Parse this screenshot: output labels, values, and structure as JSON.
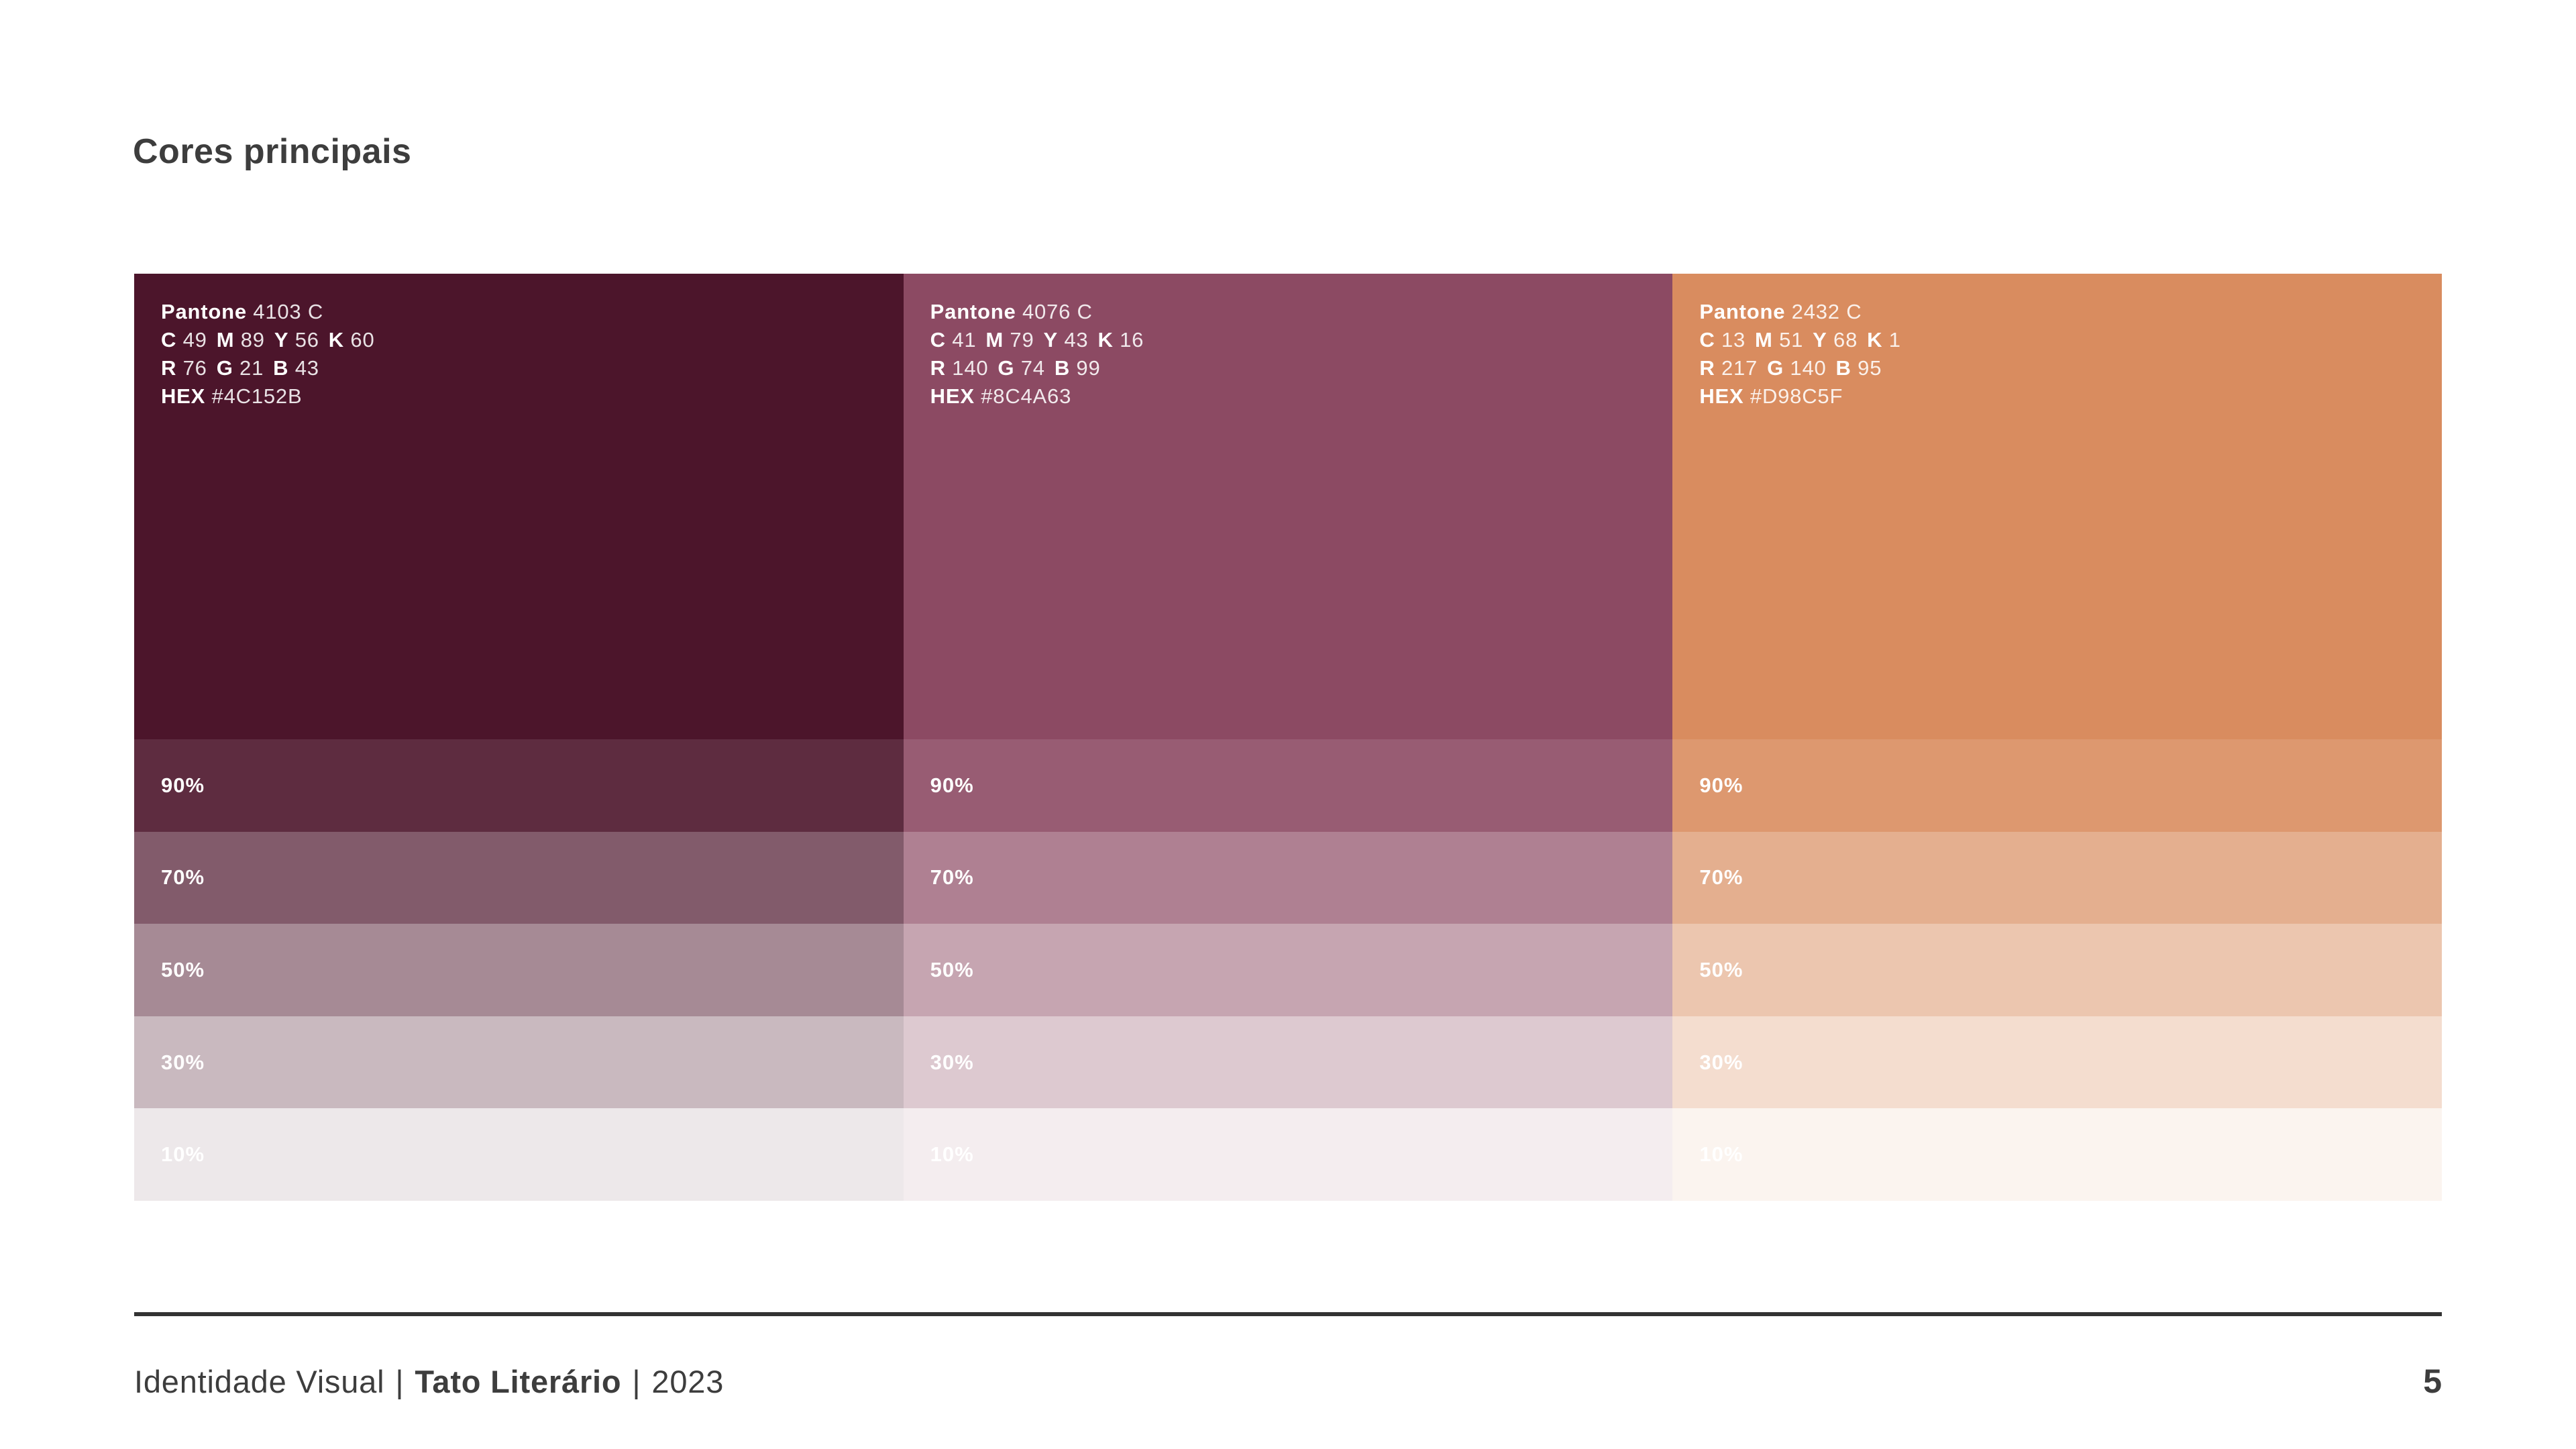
{
  "title": "Cores principais",
  "palette": {
    "label_pantone": "Pantone",
    "label_hex": "HEX",
    "tint_labels": [
      "90%",
      "70%",
      "50%",
      "30%",
      "10%"
    ],
    "tint_percents": [
      90,
      70,
      50,
      30,
      10
    ],
    "colors": [
      {
        "pantone": "4103 C",
        "cmyk": [
          [
            "C",
            "49"
          ],
          [
            "M",
            "89"
          ],
          [
            "Y",
            "56"
          ],
          [
            "K",
            "60"
          ]
        ],
        "rgb": [
          [
            "R",
            "76"
          ],
          [
            "G",
            "21"
          ],
          [
            "B",
            "43"
          ]
        ],
        "hex": "#4C152B"
      },
      {
        "pantone": "4076 C",
        "cmyk": [
          [
            "C",
            "41"
          ],
          [
            "M",
            "79"
          ],
          [
            "Y",
            "43"
          ],
          [
            "K",
            "16"
          ]
        ],
        "rgb": [
          [
            "R",
            "140"
          ],
          [
            "G",
            "74"
          ],
          [
            "B",
            "99"
          ]
        ],
        "hex": "#8C4A63"
      },
      {
        "pantone": "2432 C",
        "cmyk": [
          [
            "C",
            "13"
          ],
          [
            "M",
            "51"
          ],
          [
            "Y",
            "68"
          ],
          [
            "K",
            "1"
          ]
        ],
        "rgb": [
          [
            "R",
            "217"
          ],
          [
            "G",
            "140"
          ],
          [
            "B",
            "95"
          ]
        ],
        "hex": "#D98C5F"
      }
    ]
  },
  "footer": {
    "doc_label": "Identidade Visual",
    "separator": "|",
    "brand": "Tato Literário",
    "year": "2023",
    "page_number": "5"
  },
  "style_colors": {
    "heading_text": "#3d3d3d",
    "divider": "#333333",
    "swatch_text": "#ffffff",
    "background": "#ffffff"
  }
}
